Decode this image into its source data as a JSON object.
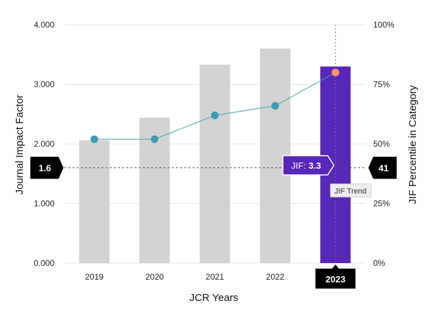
{
  "chart_data": {
    "type": "bar",
    "categories": [
      "2019",
      "2020",
      "2021",
      "2022",
      "2023"
    ],
    "series": [
      {
        "name": "",
        "kind": "bar",
        "axis": "left",
        "values": [
          2.06,
          2.44,
          3.33,
          3.6,
          3.3
        ]
      },
      {
        "name": "",
        "kind": "line",
        "axis": "right",
        "values": [
          52,
          52,
          62,
          66,
          80
        ]
      }
    ],
    "xlabel": "JCR Years",
    "ylabel": "Journal Impact Factor",
    "ylabel_right": "JIF Percentile in Category",
    "ylim": [
      0,
      4
    ],
    "ylim_right": [
      0,
      100
    ],
    "yticks": [
      "0.000",
      "1.000",
      "2.000",
      "3.000",
      "4.000"
    ],
    "yticks_right": [
      "0%",
      "25%",
      "50%",
      "75%",
      "100%"
    ],
    "grid": true,
    "highlight_index": 4,
    "reference_line": {
      "left_value": 1.6,
      "left_label": "1.6",
      "right_value": 41,
      "right_label": "41"
    },
    "tooltip": {
      "prefix": "JIF: ",
      "value": "3.3"
    },
    "trend_label": "JIF Trend",
    "colors": {
      "bar": "#d3d3d3",
      "bar_highlight": "#5826b8",
      "line": "#4a9fb0",
      "point": "#3d9bb0",
      "point_highlight": "#f39567",
      "grid": "#e6e6e6",
      "callout": "#000000",
      "tooltip": "#5826b8"
    }
  }
}
